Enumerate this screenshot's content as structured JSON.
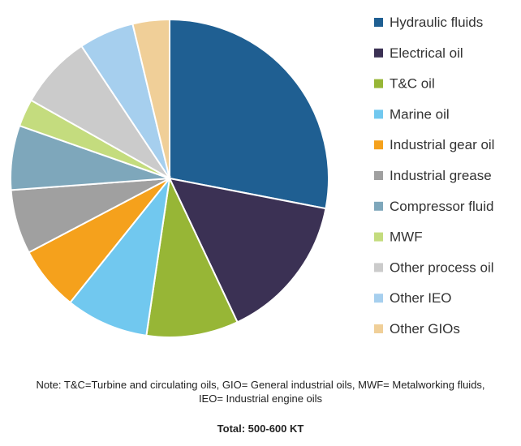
{
  "chart_data": {
    "type": "pie",
    "title": "",
    "legend_position": "right",
    "start_angle_deg": 0,
    "direction": "clockwise",
    "slices": [
      {
        "label": "Hydraulic fluids",
        "value": 30.0,
        "color": "#1f5f92"
      },
      {
        "label": "Electrical oil",
        "value": 16.0,
        "color": "#3b3154"
      },
      {
        "label": "T&C oil",
        "value": 10.0,
        "color": "#97b636"
      },
      {
        "label": "Marine oil",
        "value": 9.0,
        "color": "#71c8ef"
      },
      {
        "label": "Industrial gear oil",
        "value": 7.0,
        "color": "#f5a11c"
      },
      {
        "label": "Industrial grease",
        "value": 7.0,
        "color": "#a0a0a0"
      },
      {
        "label": "Compressor fluid",
        "value": 7.0,
        "color": "#7ea7bb"
      },
      {
        "label": "MWF",
        "value": 3.0,
        "color": "#c4dc7e"
      },
      {
        "label": "Other process oil",
        "value": 8.0,
        "color": "#cbcbcb"
      },
      {
        "label": "Other IEO",
        "value": 6.0,
        "color": "#a6cfee"
      },
      {
        "label": "Other GIOs",
        "value": 4.0,
        "color": "#f0cf98"
      }
    ]
  },
  "note": {
    "line1": "Note: T&C=Turbine and circulating oils, GIO= General industrial oils, MWF= Metalworking fluids,",
    "line2": "IEO= Industrial engine oils"
  },
  "total_label": "Total: 500-600 KT"
}
